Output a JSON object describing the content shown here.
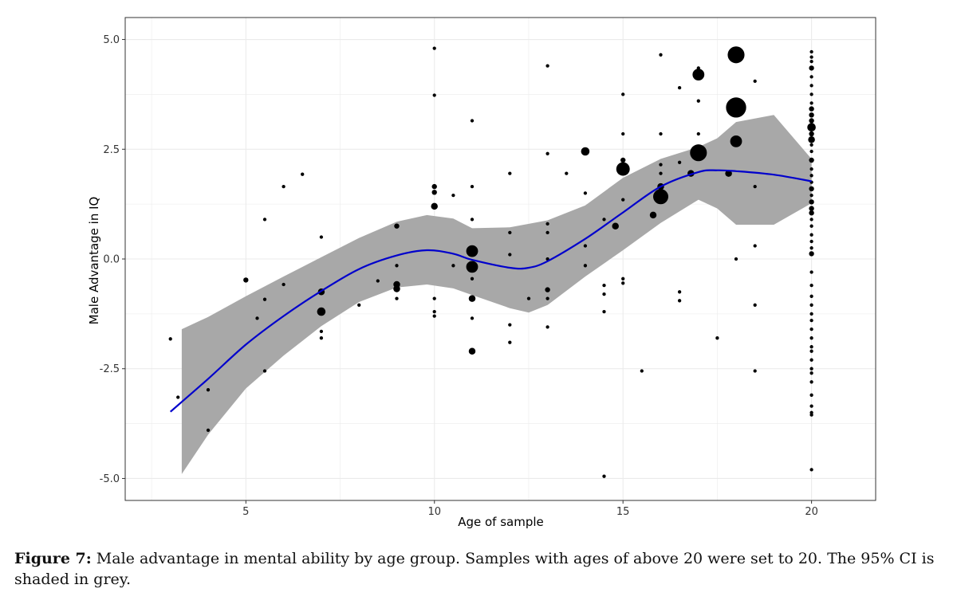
{
  "chart_data": {
    "type": "scatter",
    "xlabel": "Age of sample",
    "ylabel": "Male Advantage in IQ",
    "xlim": [
      1.8,
      21.7
    ],
    "ylim": [
      -5.5,
      5.5
    ],
    "x_ticks": [
      5,
      10,
      15,
      20
    ],
    "y_ticks": [
      -5.0,
      -2.5,
      0.0,
      2.5,
      5.0
    ],
    "x_tick_labels": [
      "5",
      "10",
      "15",
      "20"
    ],
    "y_tick_labels": [
      "-5.0",
      "-2.5",
      "0.0",
      "2.5",
      "5.0"
    ],
    "grid": true,
    "colors": {
      "points": "#000000",
      "smooth": "#0000cc",
      "ci_band": "#a8a8a8",
      "grid": "#ebebeb",
      "border": "#333333"
    },
    "smooth_line": {
      "x": [
        3.0,
        4.0,
        5.0,
        6.0,
        7.0,
        8.0,
        9.0,
        9.8,
        10.5,
        11.0,
        12.0,
        12.5,
        13.0,
        14.0,
        15.0,
        16.0,
        17.0,
        17.5,
        18.0,
        19.0,
        20.0
      ],
      "y": [
        -3.48,
        -2.73,
        -1.95,
        -1.3,
        -0.73,
        -0.23,
        0.08,
        0.2,
        0.12,
        -0.02,
        -0.2,
        -0.2,
        -0.05,
        0.46,
        1.06,
        1.65,
        1.98,
        2.02,
        2.0,
        1.92,
        1.77
      ]
    },
    "ci_band": {
      "x": [
        3.3,
        4.0,
        5.0,
        6.0,
        7.0,
        8.0,
        9.0,
        9.8,
        10.5,
        11.0,
        12.0,
        12.5,
        13.0,
        14.0,
        15.0,
        16.0,
        17.0,
        17.5,
        18.0,
        19.0,
        20.0
      ],
      "upper": [
        -1.6,
        -1.32,
        -0.85,
        -0.4,
        0.04,
        0.48,
        0.85,
        1.0,
        0.92,
        0.7,
        0.72,
        0.8,
        0.88,
        1.22,
        1.85,
        2.28,
        2.55,
        2.75,
        3.12,
        3.28,
        2.28
      ],
      "lower": [
        -4.9,
        -4.0,
        -2.95,
        -2.2,
        -1.53,
        -0.98,
        -0.65,
        -0.58,
        -0.67,
        -0.82,
        -1.12,
        -1.22,
        -1.05,
        -0.4,
        0.2,
        0.82,
        1.35,
        1.15,
        0.78,
        0.78,
        1.27
      ]
    },
    "points": [
      {
        "x": 3.0,
        "y": -1.82,
        "s": 1
      },
      {
        "x": 3.2,
        "y": -3.15,
        "s": 1
      },
      {
        "x": 4.0,
        "y": -2.98,
        "s": 1
      },
      {
        "x": 4.0,
        "y": -3.9,
        "s": 1
      },
      {
        "x": 5.0,
        "y": -0.48,
        "s": 2
      },
      {
        "x": 5.3,
        "y": -1.35,
        "s": 1
      },
      {
        "x": 5.5,
        "y": 0.9,
        "s": 1
      },
      {
        "x": 5.5,
        "y": -0.92,
        "s": 1
      },
      {
        "x": 5.5,
        "y": -2.55,
        "s": 1
      },
      {
        "x": 6.0,
        "y": 1.65,
        "s": 1
      },
      {
        "x": 6.0,
        "y": -0.58,
        "s": 1
      },
      {
        "x": 6.5,
        "y": 1.93,
        "s": 1
      },
      {
        "x": 7.0,
        "y": 0.5,
        "s": 1
      },
      {
        "x": 7.0,
        "y": -0.75,
        "s": 3
      },
      {
        "x": 7.0,
        "y": -1.2,
        "s": 4
      },
      {
        "x": 7.0,
        "y": -1.65,
        "s": 1
      },
      {
        "x": 7.0,
        "y": -1.8,
        "s": 1
      },
      {
        "x": 8.0,
        "y": -1.05,
        "s": 1
      },
      {
        "x": 8.5,
        "y": -0.5,
        "s": 1
      },
      {
        "x": 9.0,
        "y": 0.75,
        "s": 2
      },
      {
        "x": 9.0,
        "y": -0.58,
        "s": 3
      },
      {
        "x": 9.0,
        "y": -0.68,
        "s": 3
      },
      {
        "x": 9.0,
        "y": -0.9,
        "s": 1
      },
      {
        "x": 9.0,
        "y": -0.15,
        "s": 1
      },
      {
        "x": 10.0,
        "y": 4.8,
        "s": 1
      },
      {
        "x": 10.0,
        "y": 3.73,
        "s": 1
      },
      {
        "x": 10.0,
        "y": 1.65,
        "s": 2
      },
      {
        "x": 10.0,
        "y": 1.52,
        "s": 2
      },
      {
        "x": 10.0,
        "y": 1.2,
        "s": 3
      },
      {
        "x": 10.0,
        "y": -0.9,
        "s": 1
      },
      {
        "x": 10.0,
        "y": -1.2,
        "s": 1
      },
      {
        "x": 10.0,
        "y": -1.3,
        "s": 1
      },
      {
        "x": 10.5,
        "y": 1.45,
        "s": 1
      },
      {
        "x": 10.5,
        "y": -0.15,
        "s": 1
      },
      {
        "x": 11.0,
        "y": 3.15,
        "s": 1
      },
      {
        "x": 11.0,
        "y": 1.65,
        "s": 1
      },
      {
        "x": 11.0,
        "y": 0.9,
        "s": 1
      },
      {
        "x": 11.0,
        "y": 0.18,
        "s": 6
      },
      {
        "x": 11.0,
        "y": -0.18,
        "s": 6
      },
      {
        "x": 11.0,
        "y": -0.45,
        "s": 1
      },
      {
        "x": 11.0,
        "y": -0.9,
        "s": 3
      },
      {
        "x": 11.0,
        "y": -1.35,
        "s": 1
      },
      {
        "x": 11.0,
        "y": -2.1,
        "s": 3
      },
      {
        "x": 12.0,
        "y": 1.95,
        "s": 1
      },
      {
        "x": 12.0,
        "y": 0.6,
        "s": 1
      },
      {
        "x": 12.0,
        "y": 0.1,
        "s": 1
      },
      {
        "x": 12.0,
        "y": -1.5,
        "s": 1
      },
      {
        "x": 12.0,
        "y": -1.9,
        "s": 1
      },
      {
        "x": 12.5,
        "y": -0.9,
        "s": 1
      },
      {
        "x": 13.0,
        "y": 4.4,
        "s": 1
      },
      {
        "x": 13.0,
        "y": 2.4,
        "s": 1
      },
      {
        "x": 13.0,
        "y": 0.8,
        "s": 1
      },
      {
        "x": 13.0,
        "y": 0.6,
        "s": 1
      },
      {
        "x": 13.0,
        "y": 0.0,
        "s": 1
      },
      {
        "x": 13.0,
        "y": -0.7,
        "s": 2
      },
      {
        "x": 13.0,
        "y": -0.9,
        "s": 1
      },
      {
        "x": 13.0,
        "y": -1.55,
        "s": 1
      },
      {
        "x": 13.5,
        "y": 1.95,
        "s": 1
      },
      {
        "x": 14.0,
        "y": 2.45,
        "s": 4
      },
      {
        "x": 14.0,
        "y": 1.5,
        "s": 1
      },
      {
        "x": 14.0,
        "y": 0.3,
        "s": 1
      },
      {
        "x": 14.0,
        "y": -0.15,
        "s": 1
      },
      {
        "x": 14.5,
        "y": 0.9,
        "s": 1
      },
      {
        "x": 14.5,
        "y": -0.6,
        "s": 1
      },
      {
        "x": 14.5,
        "y": -0.8,
        "s": 1
      },
      {
        "x": 14.5,
        "y": -1.2,
        "s": 1
      },
      {
        "x": 14.5,
        "y": -4.95,
        "s": 1
      },
      {
        "x": 14.8,
        "y": 0.75,
        "s": 3
      },
      {
        "x": 15.0,
        "y": 3.75,
        "s": 1
      },
      {
        "x": 15.0,
        "y": 2.85,
        "s": 1
      },
      {
        "x": 15.0,
        "y": 2.25,
        "s": 2
      },
      {
        "x": 15.0,
        "y": 2.05,
        "s": 7
      },
      {
        "x": 15.0,
        "y": 1.35,
        "s": 1
      },
      {
        "x": 15.0,
        "y": -0.45,
        "s": 1
      },
      {
        "x": 15.0,
        "y": -0.55,
        "s": 1
      },
      {
        "x": 15.5,
        "y": -2.55,
        "s": 1
      },
      {
        "x": 15.8,
        "y": 1.0,
        "s": 3
      },
      {
        "x": 16.0,
        "y": 4.65,
        "s": 1
      },
      {
        "x": 16.0,
        "y": 2.85,
        "s": 1
      },
      {
        "x": 16.0,
        "y": 2.15,
        "s": 1
      },
      {
        "x": 16.0,
        "y": 1.95,
        "s": 1
      },
      {
        "x": 16.0,
        "y": 1.65,
        "s": 3
      },
      {
        "x": 16.0,
        "y": 1.42,
        "s": 8
      },
      {
        "x": 16.5,
        "y": 3.9,
        "s": 1
      },
      {
        "x": 16.5,
        "y": 2.2,
        "s": 1
      },
      {
        "x": 16.5,
        "y": -0.75,
        "s": 1
      },
      {
        "x": 16.5,
        "y": -0.95,
        "s": 1
      },
      {
        "x": 16.8,
        "y": 1.95,
        "s": 3
      },
      {
        "x": 17.0,
        "y": 4.35,
        "s": 1
      },
      {
        "x": 17.0,
        "y": 4.2,
        "s": 6
      },
      {
        "x": 17.0,
        "y": 3.6,
        "s": 1
      },
      {
        "x": 17.0,
        "y": 2.85,
        "s": 1
      },
      {
        "x": 17.0,
        "y": 2.42,
        "s": 9
      },
      {
        "x": 17.5,
        "y": -1.8,
        "s": 1
      },
      {
        "x": 17.8,
        "y": 1.95,
        "s": 3
      },
      {
        "x": 18.0,
        "y": 4.65,
        "s": 9
      },
      {
        "x": 18.0,
        "y": 3.45,
        "s": 11
      },
      {
        "x": 18.0,
        "y": 2.68,
        "s": 6
      },
      {
        "x": 18.0,
        "y": 0.0,
        "s": 1
      },
      {
        "x": 18.5,
        "y": 4.05,
        "s": 1
      },
      {
        "x": 18.5,
        "y": 1.65,
        "s": 1
      },
      {
        "x": 18.5,
        "y": 0.3,
        "s": 1
      },
      {
        "x": 18.5,
        "y": -1.05,
        "s": 1
      },
      {
        "x": 18.5,
        "y": -2.55,
        "s": 1
      },
      {
        "x": 20.0,
        "y": 4.72,
        "s": 1
      },
      {
        "x": 20.0,
        "y": 4.6,
        "s": 1
      },
      {
        "x": 20.0,
        "y": 4.5,
        "s": 1
      },
      {
        "x": 20.0,
        "y": 4.35,
        "s": 2
      },
      {
        "x": 20.0,
        "y": 4.15,
        "s": 1
      },
      {
        "x": 20.0,
        "y": 3.95,
        "s": 1
      },
      {
        "x": 20.0,
        "y": 3.75,
        "s": 1
      },
      {
        "x": 20.0,
        "y": 3.55,
        "s": 1
      },
      {
        "x": 20.0,
        "y": 3.42,
        "s": 2
      },
      {
        "x": 20.0,
        "y": 3.28,
        "s": 2
      },
      {
        "x": 20.0,
        "y": 3.15,
        "s": 2
      },
      {
        "x": 20.0,
        "y": 3.0,
        "s": 4
      },
      {
        "x": 20.0,
        "y": 2.85,
        "s": 2
      },
      {
        "x": 20.0,
        "y": 2.72,
        "s": 3
      },
      {
        "x": 20.0,
        "y": 2.6,
        "s": 1
      },
      {
        "x": 20.0,
        "y": 2.45,
        "s": 1
      },
      {
        "x": 20.0,
        "y": 2.25,
        "s": 2
      },
      {
        "x": 20.0,
        "y": 2.05,
        "s": 1
      },
      {
        "x": 20.0,
        "y": 1.9,
        "s": 1
      },
      {
        "x": 20.0,
        "y": 1.75,
        "s": 1
      },
      {
        "x": 20.0,
        "y": 1.6,
        "s": 2
      },
      {
        "x": 20.0,
        "y": 1.45,
        "s": 1
      },
      {
        "x": 20.0,
        "y": 1.3,
        "s": 2
      },
      {
        "x": 20.0,
        "y": 1.15,
        "s": 2
      },
      {
        "x": 20.0,
        "y": 1.05,
        "s": 2
      },
      {
        "x": 20.0,
        "y": 0.9,
        "s": 1
      },
      {
        "x": 20.0,
        "y": 0.75,
        "s": 1
      },
      {
        "x": 20.0,
        "y": 0.55,
        "s": 1
      },
      {
        "x": 20.0,
        "y": 0.4,
        "s": 1
      },
      {
        "x": 20.0,
        "y": 0.25,
        "s": 1
      },
      {
        "x": 20.0,
        "y": 0.12,
        "s": 2
      },
      {
        "x": 20.0,
        "y": -0.3,
        "s": 1
      },
      {
        "x": 20.0,
        "y": -0.6,
        "s": 1
      },
      {
        "x": 20.0,
        "y": -0.85,
        "s": 1
      },
      {
        "x": 20.0,
        "y": -1.05,
        "s": 1
      },
      {
        "x": 20.0,
        "y": -1.25,
        "s": 1
      },
      {
        "x": 20.0,
        "y": -1.4,
        "s": 1
      },
      {
        "x": 20.0,
        "y": -1.6,
        "s": 1
      },
      {
        "x": 20.0,
        "y": -1.8,
        "s": 1
      },
      {
        "x": 20.0,
        "y": -2.0,
        "s": 1
      },
      {
        "x": 20.0,
        "y": -2.1,
        "s": 1
      },
      {
        "x": 20.0,
        "y": -2.3,
        "s": 1
      },
      {
        "x": 20.0,
        "y": -2.5,
        "s": 1
      },
      {
        "x": 20.0,
        "y": -2.6,
        "s": 1
      },
      {
        "x": 20.0,
        "y": -2.8,
        "s": 1
      },
      {
        "x": 20.0,
        "y": -3.1,
        "s": 1
      },
      {
        "x": 20.0,
        "y": -3.35,
        "s": 1
      },
      {
        "x": 20.0,
        "y": -3.5,
        "s": 1
      },
      {
        "x": 20.0,
        "y": -3.55,
        "s": 1
      },
      {
        "x": 20.0,
        "y": -4.8,
        "s": 1
      }
    ]
  },
  "caption": {
    "label": "Figure 7:",
    "text": " Male advantage in mental ability by age group. Samples with ages of above 20 were set to 20. The 95% CI is shaded in grey."
  }
}
